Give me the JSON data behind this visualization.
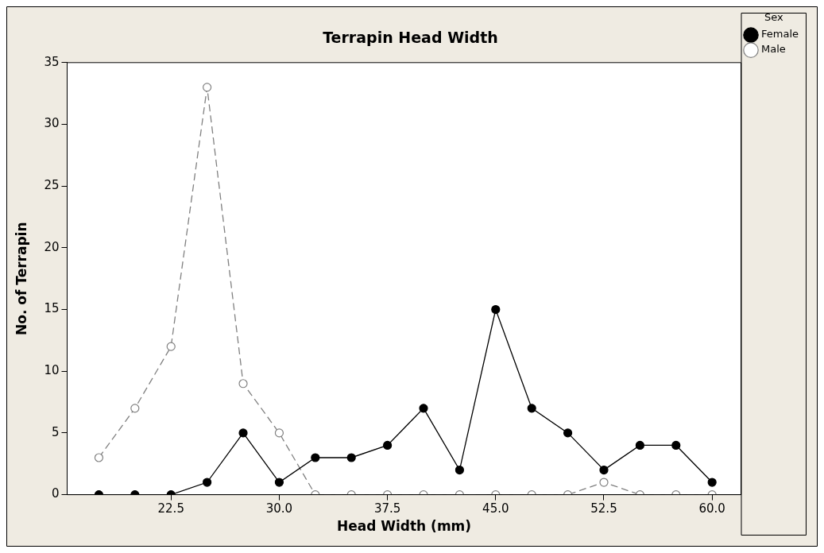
{
  "chart_data": {
    "type": "line",
    "title": "Terrapin Head Width",
    "xlabel": "Head Width (mm)",
    "ylabel": "No. of Terrapin",
    "legend_title": "Sex",
    "legend": "top right",
    "grid": false,
    "marker": "circle",
    "x": [
      17.5,
      20,
      22.5,
      25,
      27.5,
      30,
      32.5,
      35,
      37.5,
      40,
      42.5,
      45,
      47.5,
      50,
      52.5,
      55,
      57.5,
      60
    ],
    "xlim": [
      15.3,
      62
    ],
    "xticks": [
      {
        "value": 22.5,
        "label": "22.5"
      },
      {
        "value": 30,
        "label": "30.0"
      },
      {
        "value": 37.5,
        "label": "37.5"
      },
      {
        "value": 45,
        "label": "45.0"
      },
      {
        "value": 52.5,
        "label": "52.5"
      },
      {
        "value": 60,
        "label": "60.0"
      }
    ],
    "ylim": [
      0,
      35
    ],
    "yticks": [
      0,
      5,
      10,
      15,
      20,
      25,
      30,
      35
    ],
    "series": [
      {
        "name": "Female",
        "color": "#000000",
        "line_style": "solid",
        "values": [
          0,
          0,
          0,
          1,
          5,
          1,
          3,
          3,
          4,
          7,
          2,
          15,
          7,
          5,
          2,
          4,
          4,
          1
        ]
      },
      {
        "name": "Male",
        "color": "#808080",
        "line_style": "dashed",
        "values": [
          3,
          7,
          12,
          33,
          9,
          5,
          0,
          0,
          0,
          0,
          0,
          0,
          0,
          0,
          1,
          0,
          0,
          0
        ]
      }
    ]
  }
}
